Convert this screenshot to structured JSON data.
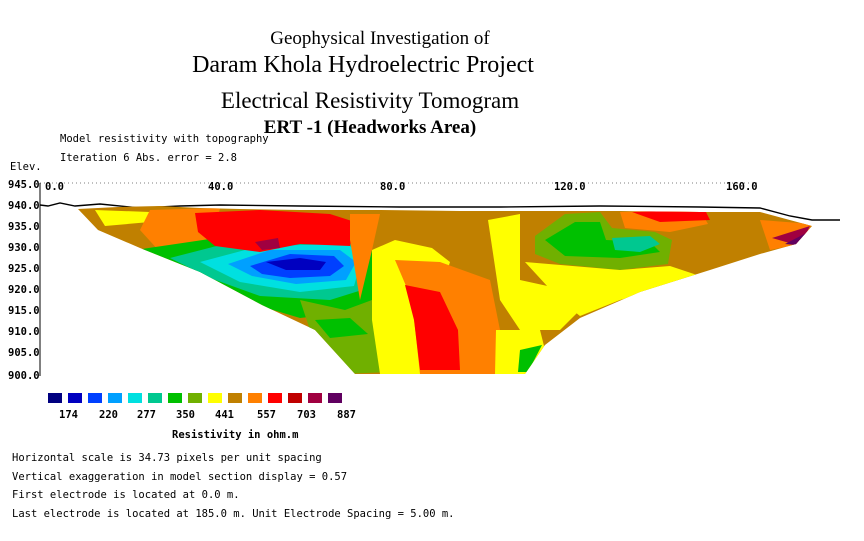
{
  "titles": {
    "line1": "Geophysical  Investigation of",
    "line2": "Daram Khola Hydroelectric Project",
    "line3": "Electrical Resistivity Tomogram",
    "line4": "ERT -1 (Headworks Area)"
  },
  "header_notes": {
    "model": "Model resistivity with topography",
    "iteration": "Iteration 6 Abs. error = 2.8",
    "elev_label": "Elev."
  },
  "elevation_ticks": [
    "945.0",
    "940.0",
    "935.0",
    "930.0",
    "925.0",
    "920.0",
    "915.0",
    "910.0",
    "905.0",
    "900.0"
  ],
  "distance_ticks": [
    "0.0",
    "40.0",
    "80.0",
    "120.0",
    "160.0"
  ],
  "legend": {
    "colors": [
      "#000080",
      "#0000c0",
      "#0040ff",
      "#00a0ff",
      "#00e0e0",
      "#00c890",
      "#00c000",
      "#70b000",
      "#ffff00",
      "#c08000",
      "#ff8000",
      "#ff0000",
      "#c00000",
      "#a00040",
      "#600060"
    ],
    "values": [
      "174",
      "220",
      "277",
      "350",
      "441",
      "557",
      "703",
      "887"
    ],
    "title": "Resistivity in ohm.m"
  },
  "footer_notes": {
    "hscale": "Horizontal scale is 34.73 pixels per unit spacing",
    "vexag": "Vertical exaggeration in model section display = 0.57",
    "first": "First electrode is located at 0.0  m.",
    "last": "Last electrode is located at 185.0 m.   Unit Electrode Spacing = 5.00 m."
  }
}
